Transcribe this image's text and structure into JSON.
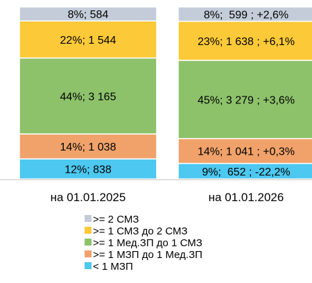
{
  "chart_data": {
    "type": "bar",
    "stacked": true,
    "normalized": true,
    "categories": [
      "на 01.01.2025",
      "на 01.01.2026"
    ],
    "series": [
      {
        "name": "< 1 МЗП",
        "color": "#4dc8f0",
        "values": [
          838,
          652
        ],
        "percent": [
          12,
          9
        ],
        "labels": [
          "12%; 838",
          "9%;  652 ; -22,2%"
        ]
      },
      {
        "name": ">= 1 МЗП до 1 Мед.ЗП",
        "color": "#f0a26a",
        "values": [
          1038,
          1041
        ],
        "percent": [
          14,
          14
        ],
        "labels": [
          "14%; 1 038",
          "14%; 1 041 ; +0,3%"
        ]
      },
      {
        "name": ">= 1 Мед.ЗП до 1 СМЗ",
        "color": "#8dc26b",
        "values": [
          3165,
          3279
        ],
        "percent": [
          44,
          45
        ],
        "labels": [
          "44%; 3 165",
          "45%; 3 279 ; +3,6%"
        ]
      },
      {
        "name": ">= 1 СМЗ до 2 СМЗ",
        "color": "#fcc938",
        "values": [
          1544,
          1638
        ],
        "percent": [
          22,
          23
        ],
        "labels": [
          "22%; 1 544",
          "23%; 1 638 ; +6,1%"
        ]
      },
      {
        "name": ">= 2 СМЗ",
        "color": "#c5ccd9",
        "values": [
          584,
          599
        ],
        "percent": [
          8,
          8
        ],
        "labels": [
          "8%; 584",
          "8%;  599 ; +2,6%"
        ]
      }
    ],
    "legend": {
      "position": "bottom",
      "order": [
        ">= 2 СМЗ",
        ">= 1 СМЗ до 2 СМЗ",
        ">= 1 Мед.ЗП до 1 СМЗ",
        ">= 1 МЗП до 1 Мед.ЗП",
        "< 1 МЗП"
      ]
    },
    "grid": false
  }
}
